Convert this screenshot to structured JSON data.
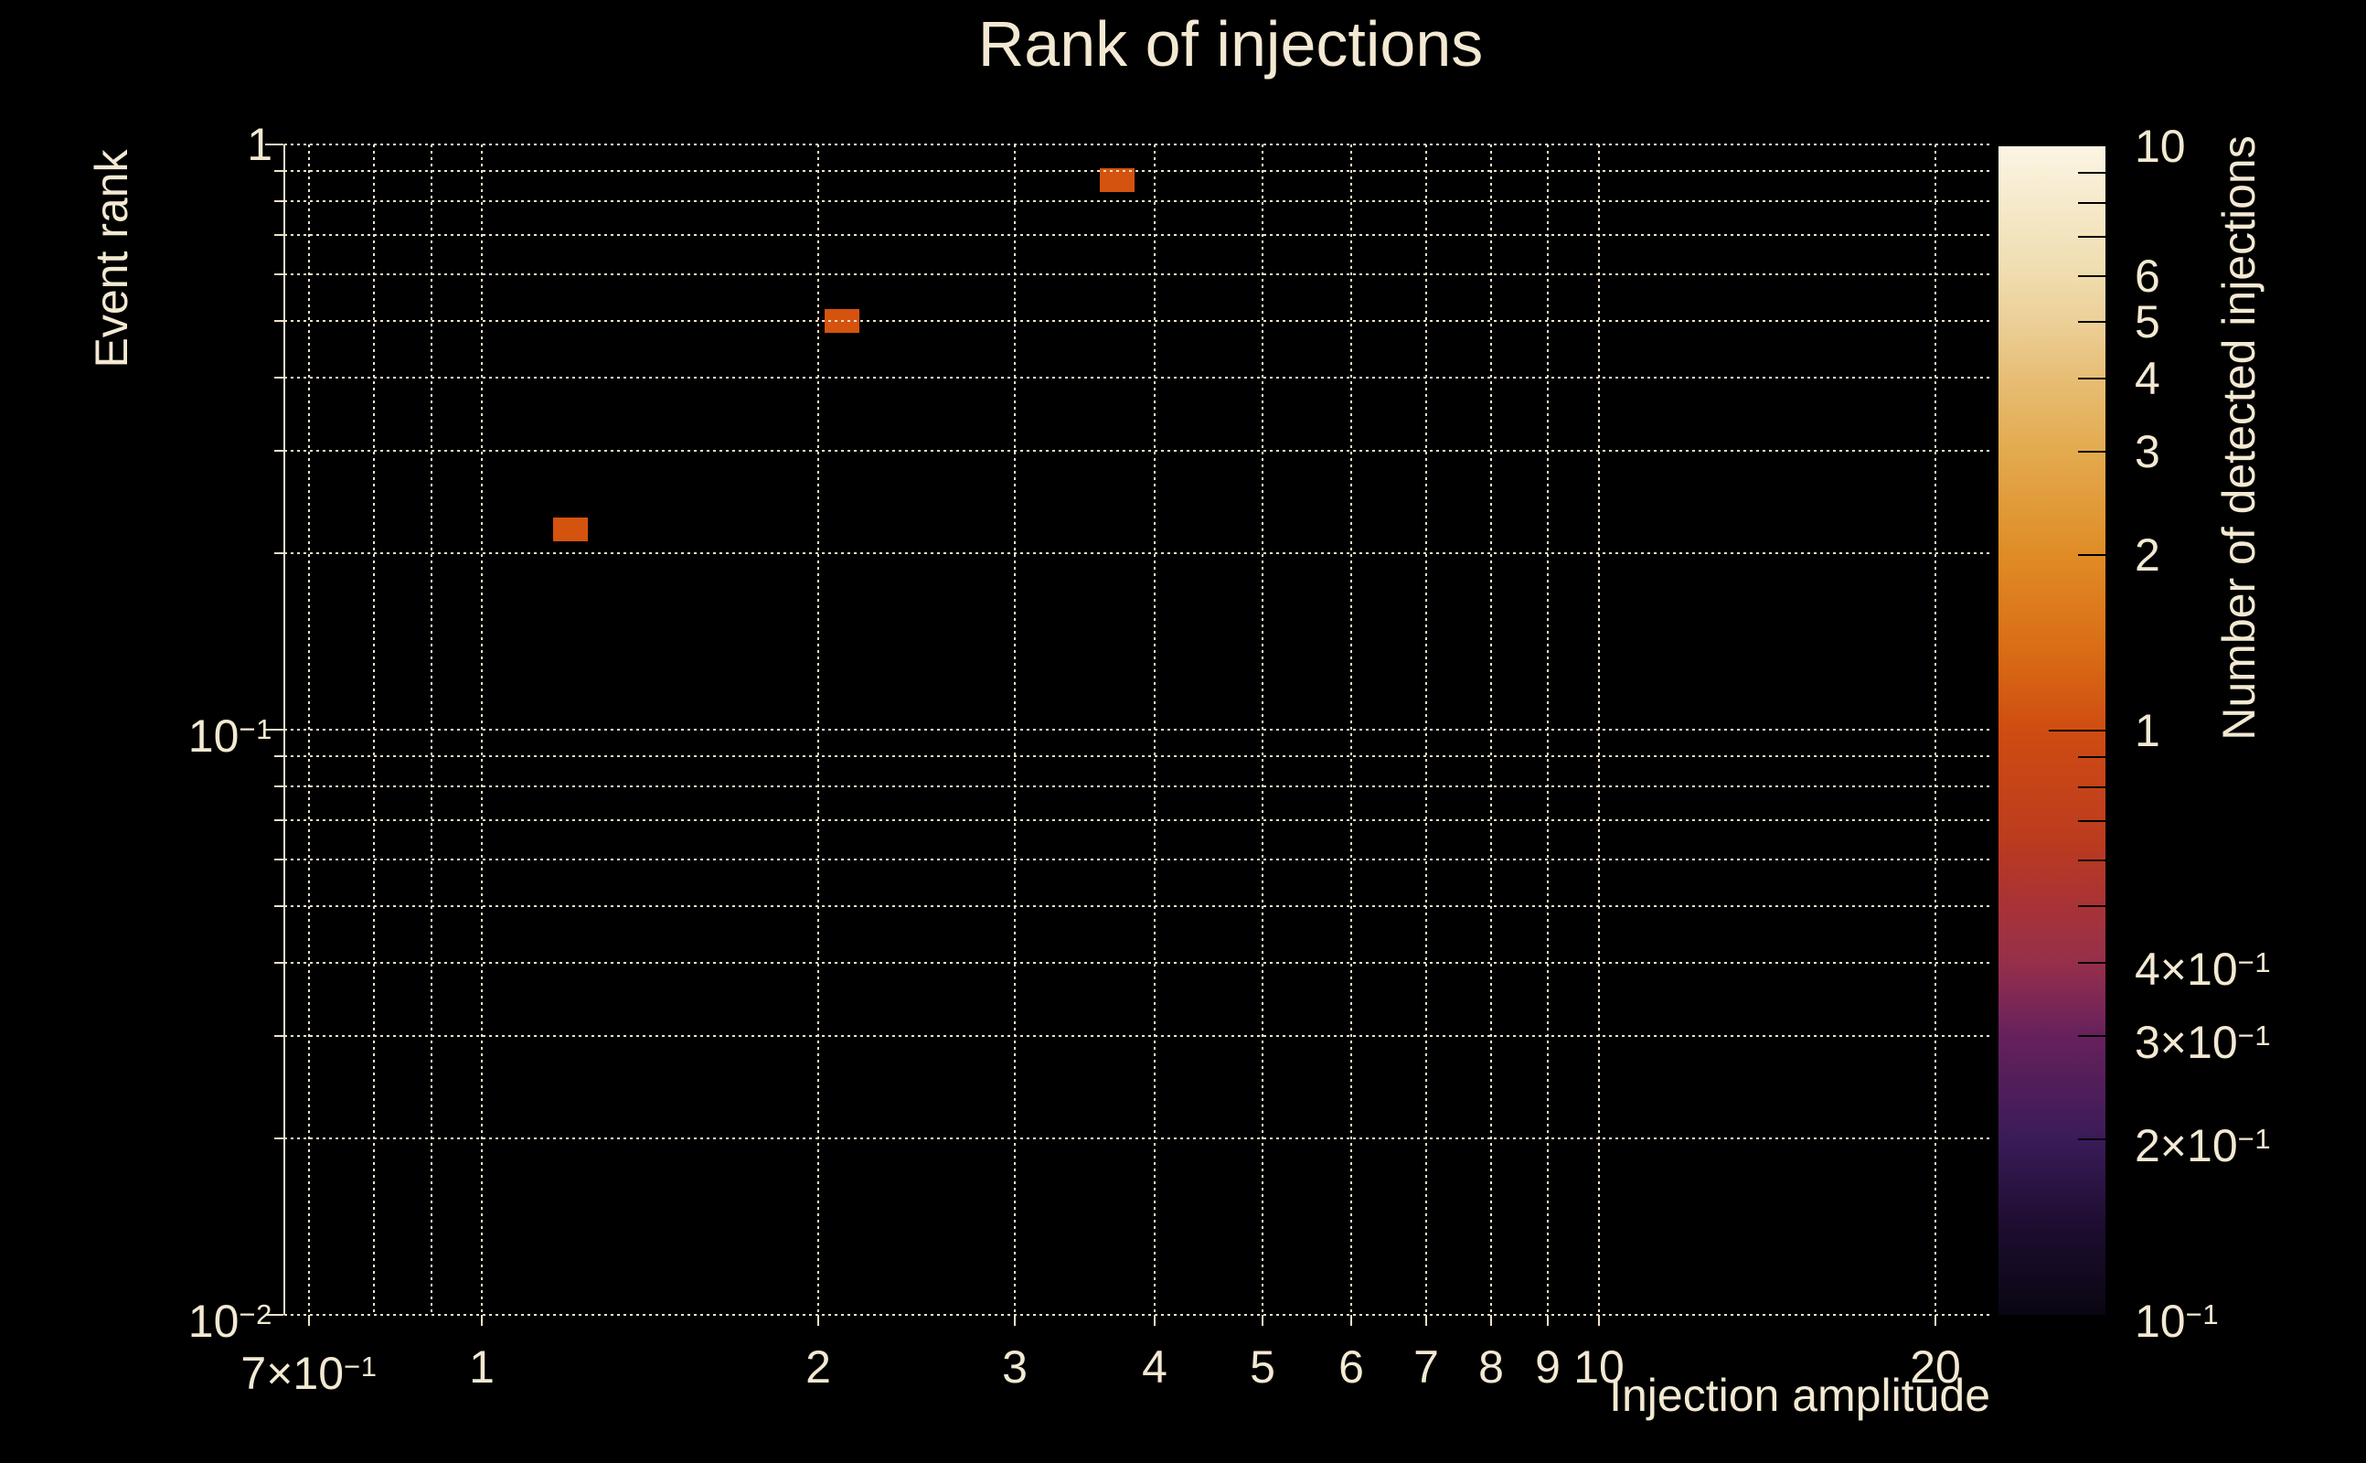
{
  "chart_data": {
    "type": "heatmap",
    "title": "Rank of injections",
    "xlabel": "Injection amplitude",
    "ylabel": "Event rank",
    "colorbar_label": "Number of detected injections",
    "x_scale": "log",
    "y_scale": "log",
    "colorbar_scale": "log",
    "xlim": [
      0.665,
      22.4
    ],
    "ylim": [
      0.01,
      1.0
    ],
    "colorbar_lim": [
      0.1,
      10
    ],
    "grid": true,
    "legend": "none",
    "points": [
      {
        "x": 1.2,
        "y": 0.22,
        "detected_injections": 1
      },
      {
        "x": 2.1,
        "y": 0.5,
        "detected_injections": 1
      },
      {
        "x": 3.7,
        "y": 0.87,
        "detected_injections": 1
      }
    ],
    "x_tick_labels": [
      {
        "value": 0.7,
        "text": "7×10",
        "sup": "−1"
      },
      {
        "value": 1,
        "text": "1"
      },
      {
        "value": 2,
        "text": "2"
      },
      {
        "value": 3,
        "text": "3"
      },
      {
        "value": 4,
        "text": "4"
      },
      {
        "value": 5,
        "text": "5"
      },
      {
        "value": 6,
        "text": "6"
      },
      {
        "value": 7,
        "text": "7"
      },
      {
        "value": 8,
        "text": "8"
      },
      {
        "value": 9,
        "text": "9"
      },
      {
        "value": 10,
        "text": "10"
      },
      {
        "value": 20,
        "text": "20"
      }
    ],
    "y_tick_labels": [
      {
        "value": 1,
        "text": "1"
      },
      {
        "value": 0.1,
        "text": "10",
        "sup": "−1"
      },
      {
        "value": 0.01,
        "text": "10",
        "sup": "−2"
      }
    ],
    "x_gridlines": [
      0.7,
      0.8,
      0.9,
      1,
      2,
      3,
      4,
      5,
      6,
      7,
      8,
      9,
      10,
      20
    ],
    "y_gridlines": [
      1,
      0.9,
      0.8,
      0.7,
      0.6,
      0.5,
      0.4,
      0.3,
      0.2,
      0.1,
      0.09,
      0.08,
      0.07,
      0.06,
      0.05,
      0.04,
      0.03,
      0.02,
      0.01
    ],
    "y_major_gridlines": [
      1,
      0.1,
      0.01
    ],
    "colorbar_tick_labels": [
      {
        "value": 10,
        "text": "10"
      },
      {
        "value": 6,
        "text": "6"
      },
      {
        "value": 5,
        "text": "5"
      },
      {
        "value": 4,
        "text": "4"
      },
      {
        "value": 3,
        "text": "3"
      },
      {
        "value": 2,
        "text": "2"
      },
      {
        "value": 1,
        "text": "1"
      },
      {
        "value": 0.4,
        "text": "4×10",
        "sup": "−1"
      },
      {
        "value": 0.3,
        "text": "3×10",
        "sup": "−1"
      },
      {
        "value": 0.2,
        "text": "2×10",
        "sup": "−1"
      },
      {
        "value": 0.1,
        "text": "10",
        "sup": "−1"
      }
    ],
    "colorbar_ticks": [
      9,
      8,
      7,
      6,
      5,
      4,
      3,
      2,
      1,
      0.9,
      0.8,
      0.7,
      0.6,
      0.5,
      0.4,
      0.3,
      0.2
    ],
    "colors": {
      "background": "#000000",
      "text": "#f3e9d2",
      "grid": "#ece2c6",
      "axis": "#ece2c6",
      "marker": "#d4530f",
      "colorbar_gradient": [
        {
          "stop": 0.0,
          "color": "#0a0612"
        },
        {
          "stop": 0.075,
          "color": "#1d0d30"
        },
        {
          "stop": 0.15,
          "color": "#3a1b58"
        },
        {
          "stop": 0.24,
          "color": "#67215c"
        },
        {
          "stop": 0.301,
          "color": "#962f4b"
        },
        {
          "stop": 0.351,
          "color": "#a83336"
        },
        {
          "stop": 0.4,
          "color": "#ba3a20"
        },
        {
          "stop": 0.5,
          "color": "#cf4c12"
        },
        {
          "stop": 0.565,
          "color": "#d96b15"
        },
        {
          "stop": 0.651,
          "color": "#e08c26"
        },
        {
          "stop": 0.738,
          "color": "#e3aa4e"
        },
        {
          "stop": 0.8,
          "color": "#e7bd74"
        },
        {
          "stop": 0.851,
          "color": "#ecd099"
        },
        {
          "stop": 0.89,
          "color": "#f0dcae"
        },
        {
          "stop": 1.0,
          "color": "#fbf5e3"
        }
      ]
    }
  }
}
